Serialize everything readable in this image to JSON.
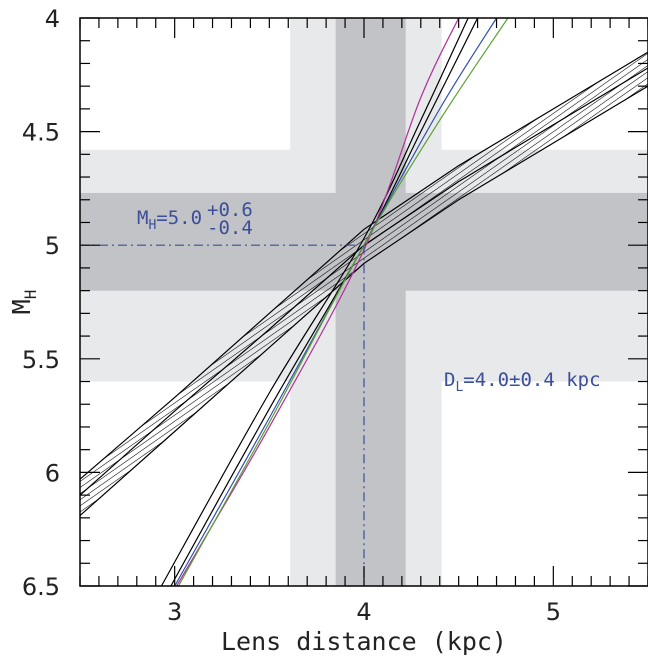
{
  "chart_data": {
    "type": "line",
    "xlabel": "Lens distance (kpc)",
    "ylabel": {
      "main": "M",
      "sub": "H"
    },
    "xlim": [
      2.5,
      5.5
    ],
    "ylim": [
      4.0,
      6.5
    ],
    "y_inverted": true,
    "x_ticks": [
      3,
      4,
      5
    ],
    "x_tick_labels": [
      "3",
      "4",
      "5"
    ],
    "y_ticks": [
      4.0,
      4.5,
      5.0,
      5.5,
      6.0,
      6.5
    ],
    "y_tick_labels": [
      "4",
      "4.5",
      "5",
      "5.5",
      "6",
      "6.5"
    ],
    "grid": false,
    "colors": {
      "band_light": "#e8e9eb",
      "band_dark": "#c2c3c7",
      "hatch": "#000000",
      "annotation": "#3b4f9a",
      "curve_black": "#000000",
      "curve_magenta": "#b0309a",
      "curve_blue": "#3050b0",
      "curve_green": "#5aa030"
    },
    "shaded_regions": {
      "D_1sigma": [
        3.85,
        4.22
      ],
      "D_2sigma": [
        3.61,
        4.41
      ],
      "M_1sigma": [
        4.77,
        5.2
      ],
      "M_2sigma": [
        4.58,
        5.6
      ]
    },
    "best_fit": {
      "D": 4.0,
      "M": 5.0
    },
    "hatched_band": {
      "center": [
        [
          2.5,
          6.1
        ],
        [
          3.0,
          5.73
        ],
        [
          3.5,
          5.37
        ],
        [
          4.0,
          5.0
        ],
        [
          4.5,
          4.72
        ],
        [
          5.0,
          4.47
        ],
        [
          5.5,
          4.22
        ]
      ],
      "upper": [
        [
          2.5,
          6.03
        ],
        [
          3.0,
          5.67
        ],
        [
          3.5,
          5.3
        ],
        [
          4.0,
          4.93
        ],
        [
          4.5,
          4.65
        ],
        [
          5.0,
          4.4
        ],
        [
          5.5,
          4.15
        ]
      ],
      "lower": [
        [
          2.5,
          6.19
        ],
        [
          3.0,
          5.82
        ],
        [
          3.5,
          5.45
        ],
        [
          4.0,
          5.08
        ],
        [
          4.5,
          4.8
        ],
        [
          5.0,
          4.55
        ],
        [
          5.5,
          4.3
        ]
      ]
    },
    "curves": [
      {
        "color": "black",
        "points": [
          [
            2.98,
            6.5
          ],
          [
            3.5,
            5.72
          ],
          [
            4.0,
            5.0
          ],
          [
            4.3,
            4.5
          ],
          [
            4.6,
            4.0
          ]
        ]
      },
      {
        "color": "black",
        "points": [
          [
            2.93,
            6.5
          ],
          [
            3.5,
            5.65
          ],
          [
            4.0,
            4.97
          ],
          [
            4.3,
            4.45
          ],
          [
            4.55,
            4.0
          ]
        ]
      },
      {
        "color": "magenta",
        "points": [
          [
            3.01,
            6.5
          ],
          [
            3.5,
            5.8
          ],
          [
            4.0,
            5.02
          ],
          [
            4.3,
            4.35
          ],
          [
            4.5,
            4.0
          ]
        ]
      },
      {
        "color": "blue",
        "points": [
          [
            3.0,
            6.5
          ],
          [
            3.5,
            5.76
          ],
          [
            4.0,
            5.0
          ],
          [
            4.4,
            4.4
          ],
          [
            4.7,
            4.0
          ]
        ]
      },
      {
        "color": "green",
        "points": [
          [
            3.02,
            6.5
          ],
          [
            3.5,
            5.78
          ],
          [
            4.0,
            5.0
          ],
          [
            4.4,
            4.45
          ],
          [
            4.76,
            4.0
          ]
        ]
      }
    ],
    "annotations": {
      "mh": {
        "main": "M",
        "sub": "H",
        "value": "=5.0",
        "sup": "+0.6",
        "inf": "-0.4"
      },
      "dl": {
        "main": "D",
        "sub": "L",
        "value": "=4.0±0.4 kpc"
      }
    }
  }
}
